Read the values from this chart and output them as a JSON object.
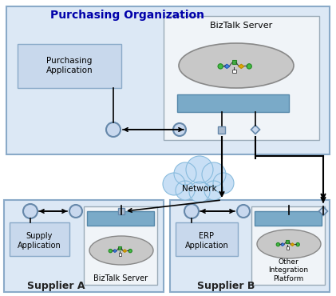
{
  "title": "Purchasing Organization",
  "supplier_a_label": "Supplier A",
  "supplier_b_label": "Supplier B",
  "network_label": "Network",
  "biztalk_label": "BizTalk Server",
  "purchasing_app_label": "Purchasing\nApplication",
  "supply_app_label": "Supply\nApplication",
  "erp_app_label": "ERP\nApplication",
  "other_integration_label": "Other\nIntegration\nPlatform",
  "biztalk_a_label": "BizTalk Server",
  "bg_outer": "#ffffff",
  "bg_purchasing": "#dce8f5",
  "bg_supplier": "#dce8f5",
  "bg_biztalk_box": "#f0f4f8",
  "bg_bar": "#7aaac8",
  "bg_ellipse": "#c8c8c8",
  "cloud_color": "#c8dff5",
  "cloud_border": "#88bbdd",
  "border_dark": "#555577",
  "border_light": "#aabbcc",
  "title_color": "#0000aa",
  "supplier_title_color": "#222222",
  "connector_fill": "#c8d8ee",
  "connector_border": "#6688aa"
}
